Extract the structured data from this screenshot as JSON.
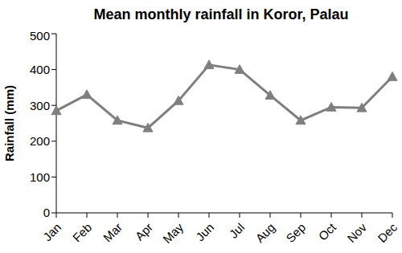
{
  "chart_data": {
    "type": "line",
    "title": "Mean monthly rainfall in Koror, Palau",
    "y_label": "Rainfall (mm)",
    "categories": [
      "Jan",
      "Feb",
      "Mar",
      "Apr",
      "May",
      "Jun",
      "Jul",
      "Aug",
      "Sep",
      "Oct",
      "Nov",
      "Dec"
    ],
    "values": [
      285,
      330,
      258,
      237,
      313,
      413,
      400,
      328,
      258,
      295,
      293,
      380
    ],
    "color": "#7f7f7f",
    "marker": "triangle",
    "ylim": [
      0,
      500
    ],
    "yticks": [
      0,
      100,
      200,
      300,
      400,
      500
    ],
    "grid": false
  }
}
